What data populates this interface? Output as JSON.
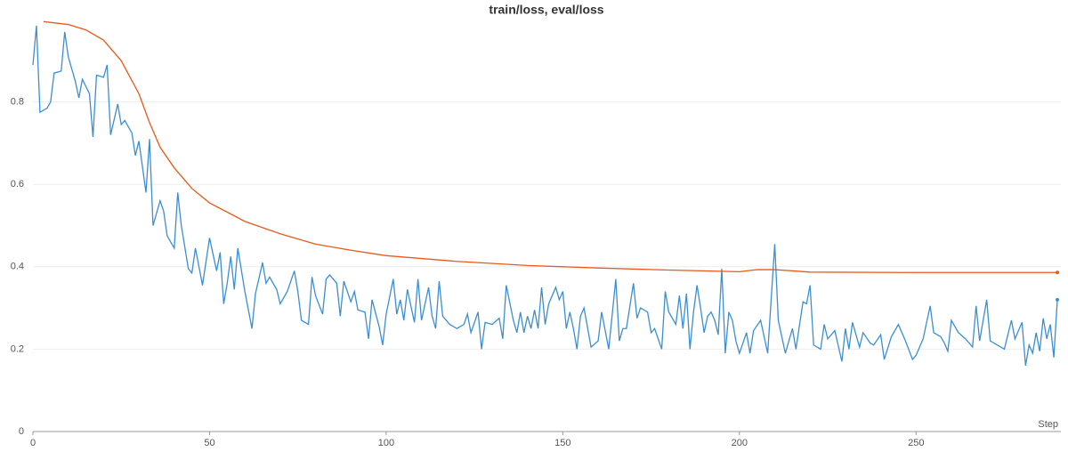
{
  "chart_data": {
    "type": "line",
    "title": "train/loss, eval/loss",
    "xlabel": "Step",
    "xlim": [
      0,
      291
    ],
    "xticks": [
      0,
      50,
      100,
      150,
      200,
      250
    ],
    "ylim": [
      0,
      1
    ],
    "yticks": [
      0,
      0.2,
      0.4,
      0.6,
      0.8
    ],
    "grid": true,
    "series": [
      {
        "name": "train/loss",
        "color": "#3b8fd1",
        "x": [
          0,
          1,
          2,
          4,
          5,
          6,
          8,
          9,
          10,
          12,
          13,
          14,
          16,
          17,
          18,
          20,
          21,
          22,
          24,
          25,
          26,
          28,
          29,
          30,
          32,
          33,
          34,
          36,
          37,
          38,
          40,
          41,
          42,
          44,
          45,
          46,
          47,
          48,
          50,
          52,
          53,
          54,
          55,
          56,
          57,
          58,
          60,
          61,
          62,
          63,
          65,
          66,
          67,
          69,
          70,
          72,
          74,
          75,
          76,
          78,
          79,
          80,
          82,
          83,
          84,
          86,
          87,
          88,
          90,
          91,
          92,
          94,
          95,
          96,
          98,
          99,
          100,
          102,
          103,
          104,
          105,
          106,
          108,
          109,
          110,
          112,
          113,
          114,
          115,
          116,
          118,
          120,
          122,
          123,
          124,
          126,
          127,
          128,
          130,
          132,
          133,
          134,
          136,
          137,
          138,
          139,
          140,
          141,
          142,
          143,
          144,
          145,
          146,
          148,
          149,
          150,
          151,
          152,
          153,
          154,
          155,
          156,
          158,
          160,
          161,
          163,
          165,
          166,
          167,
          168,
          170,
          171,
          172,
          174,
          175,
          176,
          178,
          179,
          180,
          182,
          183,
          184,
          185,
          186,
          187,
          188,
          189,
          190,
          191,
          192,
          193,
          194,
          195,
          196,
          197,
          198,
          199,
          200,
          202,
          203,
          204,
          206,
          207,
          208,
          210,
          211,
          213,
          215,
          216,
          218,
          219,
          220,
          221,
          223,
          224,
          225,
          227,
          229,
          230,
          231,
          232,
          233,
          234,
          235,
          237,
          238,
          240,
          241,
          243,
          245,
          247,
          249,
          250,
          252,
          254,
          255,
          257,
          258,
          259,
          260,
          262,
          264,
          266,
          267,
          268,
          270,
          271,
          273,
          275,
          276,
          277,
          278,
          280,
          281,
          282,
          283,
          284,
          285,
          286,
          287,
          288,
          289,
          290
        ],
        "values": [
          0.89,
          0.985,
          0.775,
          0.785,
          0.8,
          0.87,
          0.875,
          0.97,
          0.91,
          0.85,
          0.81,
          0.855,
          0.82,
          0.715,
          0.865,
          0.86,
          0.89,
          0.72,
          0.795,
          0.745,
          0.755,
          0.725,
          0.67,
          0.705,
          0.58,
          0.71,
          0.5,
          0.56,
          0.535,
          0.475,
          0.445,
          0.58,
          0.5,
          0.395,
          0.385,
          0.445,
          0.4,
          0.355,
          0.47,
          0.39,
          0.435,
          0.31,
          0.36,
          0.425,
          0.345,
          0.445,
          0.34,
          0.295,
          0.25,
          0.335,
          0.41,
          0.36,
          0.375,
          0.345,
          0.31,
          0.34,
          0.39,
          0.34,
          0.27,
          0.26,
          0.375,
          0.33,
          0.285,
          0.37,
          0.38,
          0.36,
          0.28,
          0.365,
          0.315,
          0.34,
          0.295,
          0.29,
          0.225,
          0.32,
          0.255,
          0.21,
          0.285,
          0.37,
          0.285,
          0.32,
          0.27,
          0.345,
          0.265,
          0.37,
          0.27,
          0.35,
          0.28,
          0.25,
          0.365,
          0.28,
          0.26,
          0.25,
          0.26,
          0.285,
          0.24,
          0.29,
          0.2,
          0.265,
          0.26,
          0.275,
          0.225,
          0.355,
          0.27,
          0.24,
          0.29,
          0.24,
          0.28,
          0.25,
          0.295,
          0.25,
          0.35,
          0.26,
          0.31,
          0.35,
          0.32,
          0.34,
          0.25,
          0.29,
          0.25,
          0.2,
          0.28,
          0.3,
          0.205,
          0.22,
          0.29,
          0.2,
          0.37,
          0.22,
          0.25,
          0.25,
          0.36,
          0.275,
          0.3,
          0.29,
          0.24,
          0.25,
          0.2,
          0.34,
          0.29,
          0.26,
          0.33,
          0.25,
          0.335,
          0.2,
          0.29,
          0.355,
          0.3,
          0.24,
          0.28,
          0.29,
          0.27,
          0.235,
          0.395,
          0.19,
          0.29,
          0.27,
          0.22,
          0.19,
          0.24,
          0.19,
          0.245,
          0.27,
          0.23,
          0.19,
          0.455,
          0.27,
          0.19,
          0.25,
          0.2,
          0.315,
          0.31,
          0.355,
          0.21,
          0.2,
          0.26,
          0.225,
          0.245,
          0.17,
          0.25,
          0.2,
          0.265,
          0.235,
          0.205,
          0.24,
          0.215,
          0.21,
          0.235,
          0.175,
          0.23,
          0.26,
          0.22,
          0.175,
          0.185,
          0.225,
          0.305,
          0.24,
          0.23,
          0.215,
          0.195,
          0.27,
          0.24,
          0.225,
          0.205,
          0.305,
          0.22,
          0.32,
          0.22,
          0.21,
          0.2,
          0.235,
          0.27,
          0.225,
          0.265,
          0.16,
          0.21,
          0.19,
          0.24,
          0.195,
          0.275,
          0.225,
          0.26,
          0.18,
          0.32
        ]
      },
      {
        "name": "eval/loss",
        "color": "#e8591a",
        "x": [
          3,
          10,
          15,
          20,
          25,
          30,
          33,
          36,
          40,
          45,
          50,
          60,
          70,
          80,
          90,
          100,
          120,
          140,
          160,
          180,
          200,
          205,
          210,
          220,
          250,
          290
        ],
        "values": [
          0.995,
          0.988,
          0.975,
          0.95,
          0.9,
          0.82,
          0.75,
          0.69,
          0.64,
          0.59,
          0.555,
          0.51,
          0.48,
          0.455,
          0.44,
          0.427,
          0.413,
          0.403,
          0.397,
          0.392,
          0.388,
          0.393,
          0.393,
          0.387,
          0.386,
          0.386
        ]
      }
    ]
  }
}
